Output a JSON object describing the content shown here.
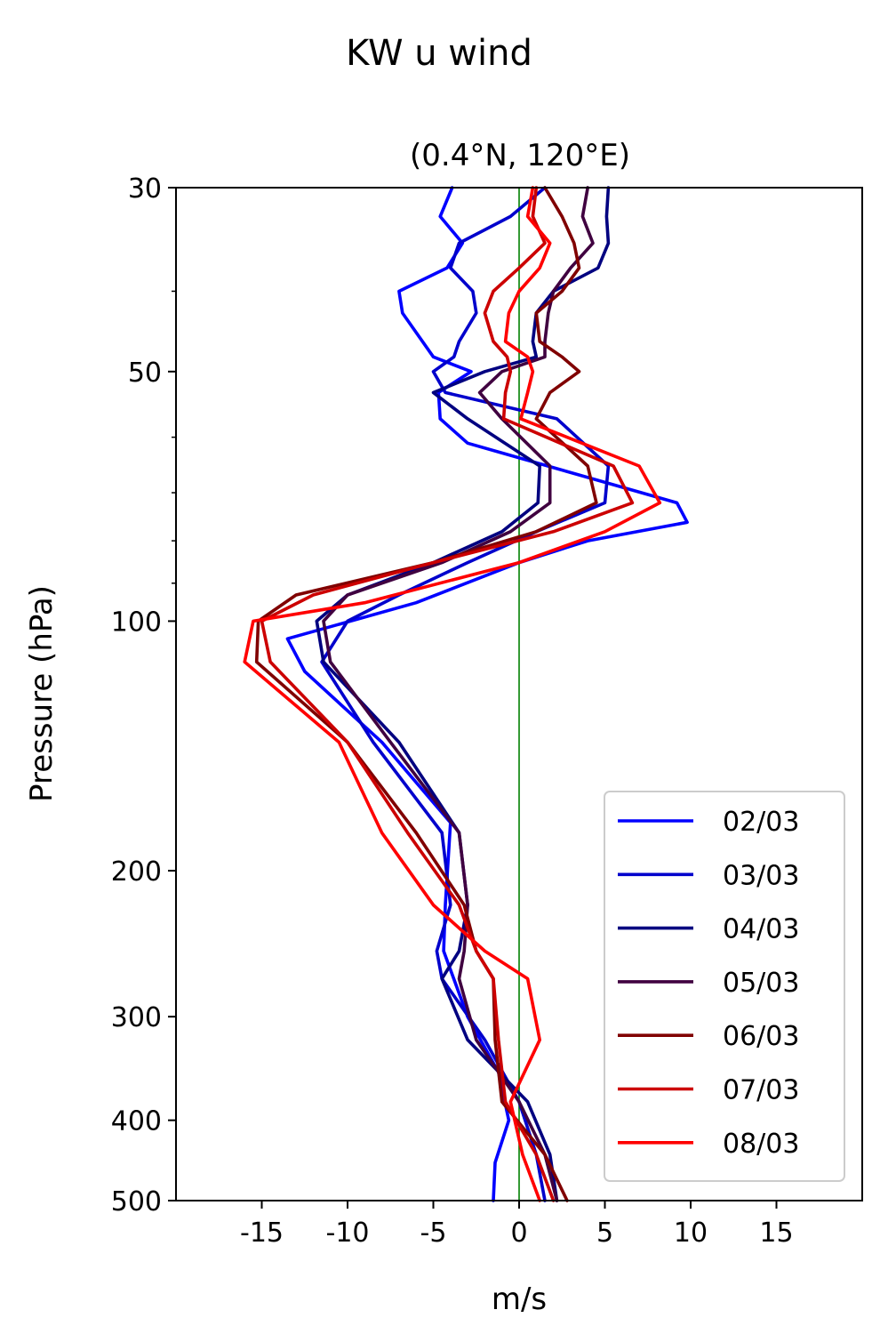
{
  "chart_data": {
    "type": "line",
    "title": "KW u wind",
    "subtitle": "(0.4°N, 120°E)",
    "xlabel": "m/s",
    "ylabel": "Pressure (hPa)",
    "xlim": [
      -20,
      20
    ],
    "ylim": [
      500,
      30
    ],
    "y_scale": "log",
    "xticks": [
      -15,
      -10,
      -5,
      0,
      5,
      10,
      15
    ],
    "xtick_labels": [
      "-15",
      "-10",
      "-5",
      "0",
      "5",
      "10",
      "15"
    ],
    "yticks": [
      30,
      50,
      100,
      200,
      300,
      400,
      500
    ],
    "ytick_labels": [
      "30",
      "50",
      "100",
      "200",
      "300",
      "400",
      "500"
    ],
    "y_minor_ticks": [
      40,
      60,
      70,
      80,
      90
    ],
    "reference_line": {
      "x": 0,
      "color": "#008000"
    },
    "grid": false,
    "legend": "lower-right",
    "series": [
      {
        "name": "02/03",
        "color": "#0000ff",
        "x": [
          -3.9,
          -4.6,
          -3.3,
          -4.2,
          -7.0,
          -6.8,
          -5.0,
          -2.8,
          -4.7,
          -4.6,
          -3.0,
          9.2,
          9.8,
          4.0,
          0.0,
          -6.0,
          -13.5,
          -12.5,
          -8.0,
          -4.0,
          -4.3,
          -4.4,
          -3.0,
          -1.2,
          -0.6,
          -1.4,
          -1.5
        ],
        "y": [
          30,
          32.5,
          35,
          37.5,
          40,
          42.5,
          48,
          50,
          53,
          57,
          61,
          72,
          76,
          80,
          85,
          95,
          105,
          115,
          140,
          175,
          220,
          250,
          300,
          350,
          400,
          450,
          500
        ]
      },
      {
        "name": "03/03",
        "color": "#0000cc",
        "x": [
          1.5,
          -0.5,
          -3.5,
          -4.0,
          -2.7,
          -2.5,
          -3.5,
          -3.8,
          -5.0,
          -4.3,
          2.2,
          5.2,
          5.0,
          1.0,
          -3.0,
          -7.0,
          -10.0,
          -11.5,
          -8.5,
          -4.5,
          -4.0,
          -4.8,
          -4.5,
          -2.0,
          0.0,
          1.0,
          1.5
        ],
        "y": [
          30,
          32.5,
          35,
          37.5,
          40,
          42.5,
          46,
          48,
          50,
          53,
          57,
          65,
          72,
          78,
          85,
          93,
          100,
          112,
          140,
          180,
          220,
          250,
          270,
          320,
          380,
          440,
          500
        ]
      },
      {
        "name": "04/03",
        "color": "#000080",
        "x": [
          5.2,
          5.1,
          5.2,
          4.6,
          2.0,
          1.0,
          0.8,
          1.0,
          -2.0,
          -5.0,
          -3.0,
          1.2,
          1.1,
          -1.0,
          -5.0,
          -10.0,
          -11.8,
          -11.4,
          -7.0,
          -3.5,
          -3.0,
          -3.5,
          -4.5,
          -3.0,
          0.5,
          1.8,
          2.2
        ],
        "y": [
          30,
          32.5,
          35,
          37.5,
          40,
          42.5,
          46,
          48,
          50,
          53,
          57,
          65,
          72,
          78,
          85,
          93,
          100,
          112,
          140,
          180,
          220,
          250,
          270,
          320,
          380,
          440,
          500
        ]
      },
      {
        "name": "05/03",
        "color": "#400040",
        "x": [
          4.0,
          3.7,
          4.3,
          3.0,
          2.0,
          1.7,
          1.5,
          1.5,
          -1.0,
          -2.3,
          -1.0,
          1.8,
          1.8,
          -0.5,
          -4.5,
          -10.0,
          -11.4,
          -11.0,
          -7.5,
          -3.5,
          -3.0,
          -3.2,
          -3.5,
          -2.5,
          0.0,
          1.5,
          2.2
        ],
        "y": [
          30,
          32.5,
          35,
          37.5,
          40,
          42.5,
          46,
          48,
          50,
          53,
          57,
          65,
          72,
          78,
          85,
          93,
          100,
          112,
          140,
          180,
          220,
          250,
          270,
          320,
          380,
          440,
          500
        ]
      },
      {
        "name": "06/03",
        "color": "#800000",
        "x": [
          1.5,
          2.5,
          3.2,
          3.5,
          2.5,
          1.0,
          1.2,
          2.5,
          3.5,
          1.8,
          1.0,
          4.0,
          4.5,
          1.0,
          -5.0,
          -13.0,
          -15.2,
          -15.3,
          -10.0,
          -6.0,
          -3.2,
          -2.5,
          -1.5,
          -1.4,
          -1.0,
          1.5,
          2.8
        ],
        "y": [
          30,
          32.5,
          35,
          37.5,
          40,
          42.5,
          46,
          48,
          50,
          53,
          57,
          65,
          72,
          78,
          85,
          93,
          100,
          112,
          140,
          180,
          220,
          250,
          270,
          320,
          380,
          440,
          500
        ]
      },
      {
        "name": "07/03",
        "color": "#cc0000",
        "x": [
          1.0,
          0.8,
          1.5,
          0.0,
          -1.5,
          -2.0,
          -1.5,
          -0.7,
          -0.5,
          -0.8,
          -0.9,
          5.5,
          6.6,
          2.0,
          -5.0,
          -12.0,
          -15.0,
          -14.5,
          -10.0,
          -6.5,
          -3.5,
          -2.5,
          -1.5,
          -1.2,
          -0.8,
          1.0,
          2.0
        ],
        "y": [
          30,
          32.5,
          35,
          37.5,
          40,
          42.5,
          46,
          48,
          50,
          53,
          57,
          65,
          72,
          78,
          85,
          93,
          100,
          112,
          140,
          180,
          220,
          250,
          270,
          320,
          380,
          440,
          500
        ]
      },
      {
        "name": "08/03",
        "color": "#ff0000",
        "x": [
          0.8,
          0.5,
          1.8,
          1.2,
          0.0,
          -0.6,
          -0.8,
          0.5,
          0.8,
          0.5,
          0.1,
          7.0,
          8.2,
          5.0,
          0.0,
          -9.0,
          -15.5,
          -16.0,
          -10.5,
          -8.0,
          -5.0,
          -2.0,
          0.5,
          1.2,
          -0.5,
          0.2,
          1.2
        ],
        "y": [
          30,
          32.5,
          35,
          37.5,
          40,
          42.5,
          46,
          48,
          50,
          53,
          57,
          65,
          72,
          78,
          85,
          95,
          100,
          112,
          140,
          180,
          220,
          250,
          270,
          320,
          380,
          440,
          500
        ]
      }
    ]
  },
  "colors": {
    "zero_line": "#008000",
    "axes": "#000000",
    "background": "#ffffff"
  }
}
